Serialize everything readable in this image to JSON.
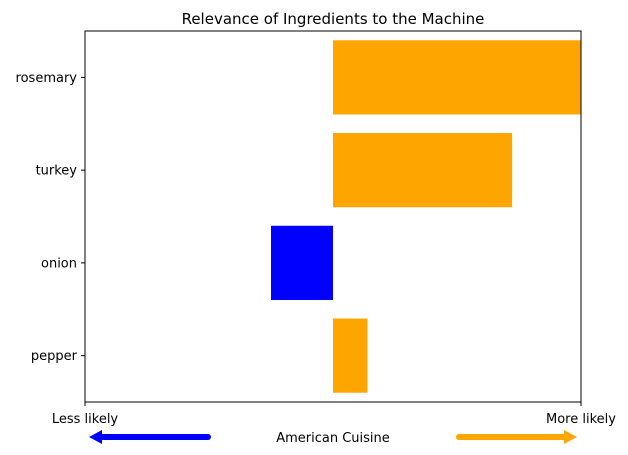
{
  "chart_data": {
    "type": "bar",
    "orientation": "horizontal",
    "title": "Relevance of Ingredients to the Machine",
    "categories": [
      "rosemary",
      "turkey",
      "onion",
      "pepper"
    ],
    "values": [
      0.18,
      0.13,
      -0.045,
      0.025
    ],
    "bar_colors": [
      "#ffa500",
      "#ffa500",
      "#0000ff",
      "#ffa500"
    ],
    "xlim": [
      -0.18,
      0.18
    ],
    "grid": false,
    "x_tick_labels": {
      "left": "Less likely",
      "right": "More likely"
    },
    "xlabel": "American Cuisine",
    "arrows": {
      "left_color": "#0000ff",
      "right_color": "#ffa500"
    }
  }
}
